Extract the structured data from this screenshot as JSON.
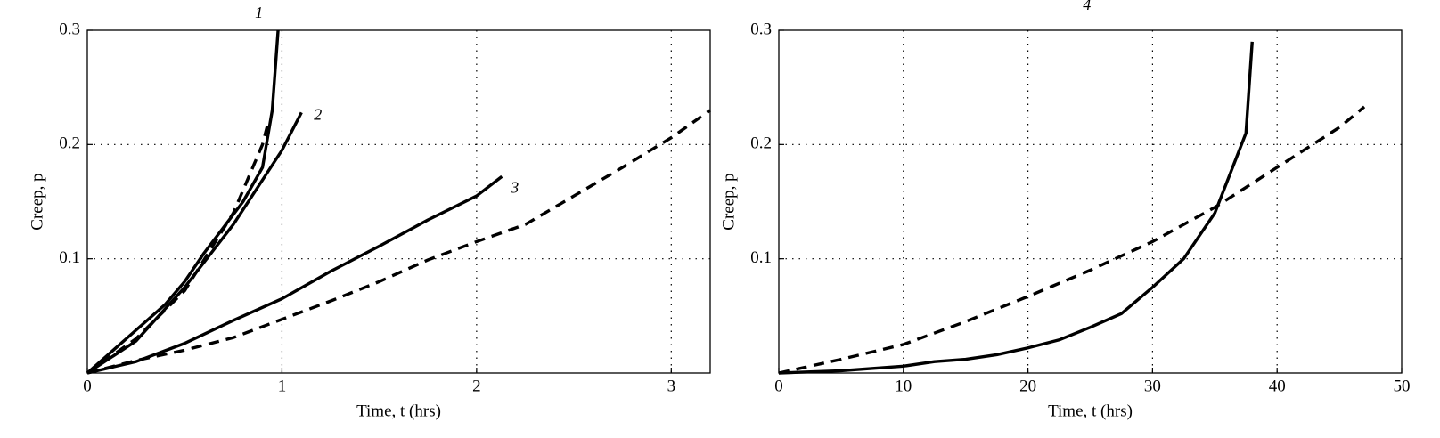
{
  "chart_data": [
    {
      "type": "line",
      "xlabel": "Time, t (hrs)",
      "ylabel": "Creep, p",
      "xlim": [
        0,
        3.2
      ],
      "ylim": [
        0,
        0.3
      ],
      "xticks": [
        0,
        1,
        2,
        3
      ],
      "yticks": [
        0.1,
        0.2,
        0.3
      ],
      "grid": true,
      "series": [
        {
          "name": "1",
          "color": "#000000",
          "linestyle": "solid",
          "x": [
            0,
            0.2,
            0.4,
            0.5,
            0.6,
            0.8,
            0.9,
            0.95,
            0.98
          ],
          "values": [
            0,
            0.03,
            0.06,
            0.08,
            0.105,
            0.15,
            0.18,
            0.23,
            0.3
          ]
        },
        {
          "color": "#000000",
          "linestyle": "dashed",
          "x": [
            0,
            0.25,
            0.5,
            0.75,
            0.9,
            0.93
          ],
          "values": [
            0,
            0.03,
            0.072,
            0.14,
            0.2,
            0.22
          ]
        },
        {
          "name": "2",
          "color": "#000000",
          "linestyle": "solid",
          "x": [
            0,
            0.25,
            0.5,
            0.75,
            1,
            1.1
          ],
          "values": [
            0,
            0.028,
            0.075,
            0.13,
            0.195,
            0.228
          ]
        },
        {
          "name": "3",
          "color": "#000000",
          "linestyle": "solid",
          "x": [
            0,
            0.25,
            0.5,
            0.75,
            1,
            1.25,
            1.5,
            1.75,
            2,
            2.13
          ],
          "values": [
            0,
            0.01,
            0.026,
            0.046,
            0.065,
            0.089,
            0.111,
            0.134,
            0.155,
            0.172
          ]
        },
        {
          "color": "#000000",
          "linestyle": "dashed",
          "x": [
            0,
            0.25,
            0.5,
            0.75,
            1,
            1.25,
            1.5,
            1.75,
            2,
            2.25,
            2.5,
            2.75,
            3,
            3.2
          ],
          "values": [
            0,
            0.011,
            0.02,
            0.031,
            0.047,
            0.063,
            0.08,
            0.099,
            0.115,
            0.13,
            0.155,
            0.18,
            0.206,
            0.23
          ]
        }
      ]
    },
    {
      "type": "line",
      "xlabel": "Time, t (hrs)",
      "ylabel": "Creep, p",
      "xlim": [
        0,
        50
      ],
      "ylim": [
        0,
        0.3
      ],
      "xticks": [
        0,
        10,
        20,
        30,
        40,
        50
      ],
      "yticks": [
        0.1,
        0.2,
        0.3
      ],
      "grid": true,
      "series": [
        {
          "name": "4",
          "color": "#000000",
          "linestyle": "solid",
          "x": [
            0,
            5,
            10,
            12.5,
            15,
            17.5,
            20,
            22.5,
            25,
            27.5,
            30,
            32.5,
            35,
            37.5,
            38
          ],
          "values": [
            0,
            0.002,
            0.006,
            0.01,
            0.012,
            0.016,
            0.022,
            0.029,
            0.04,
            0.052,
            0.075,
            0.1,
            0.14,
            0.21,
            0.29
          ]
        },
        {
          "color": "#000000",
          "linestyle": "dashed",
          "x": [
            0,
            5,
            10,
            15,
            20,
            25,
            30,
            35,
            40,
            45,
            47
          ],
          "values": [
            0,
            0.012,
            0.025,
            0.045,
            0.067,
            0.09,
            0.115,
            0.145,
            0.18,
            0.215,
            0.233
          ]
        }
      ]
    }
  ]
}
